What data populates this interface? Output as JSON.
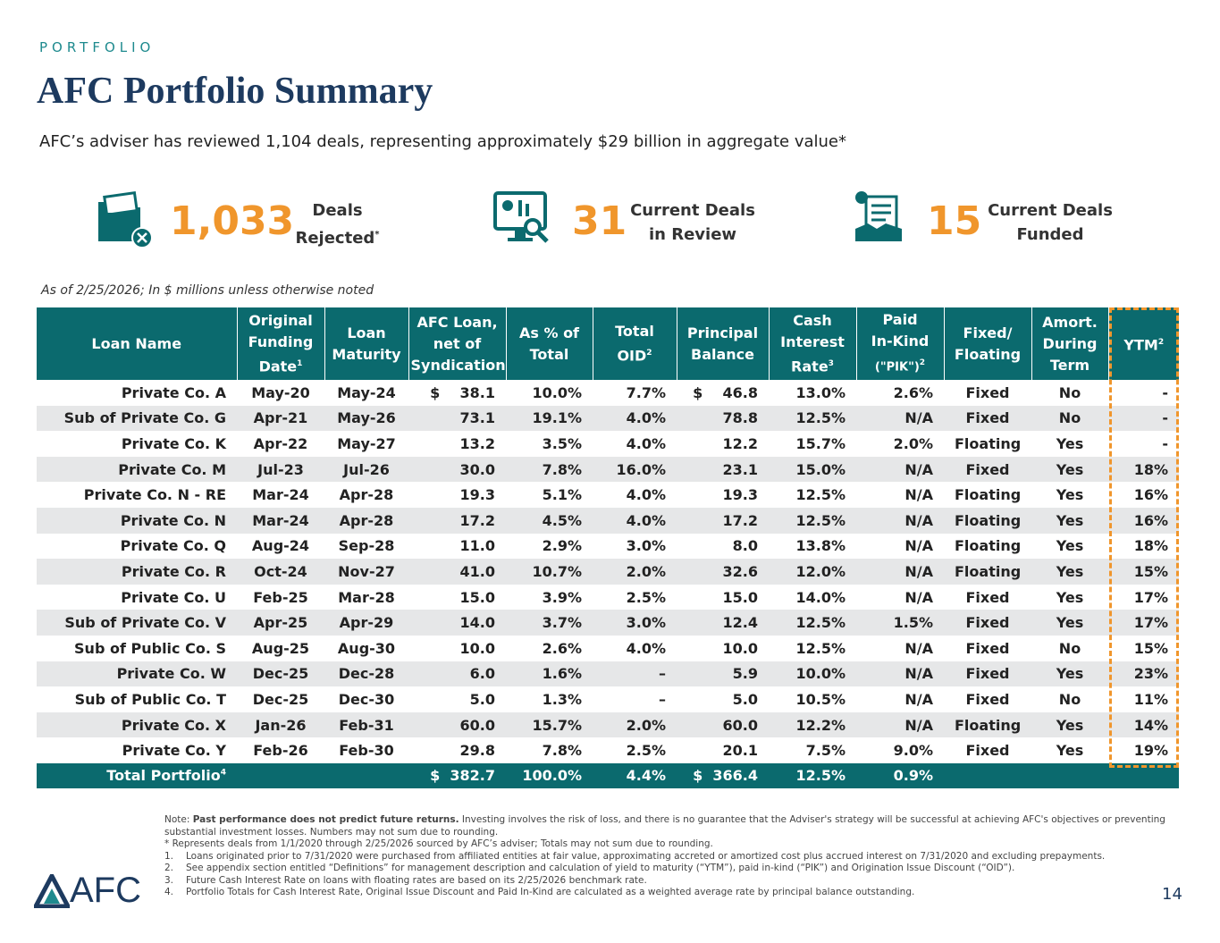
{
  "section_label": "PORTFOLIO",
  "title": "AFC Portfolio Summary",
  "subtitle": "AFC’s adviser has reviewed 1,104 deals, representing approximately $29 billion in aggregate value*",
  "stats": [
    {
      "value": "1,033",
      "lines": [
        "Deals",
        "Rejected"
      ],
      "sup": "*"
    },
    {
      "value": "31",
      "lines": [
        "Current Deals",
        "in Review"
      ]
    },
    {
      "value": "15",
      "lines": [
        "Current Deals",
        "Funded"
      ]
    }
  ],
  "as_of": "As of 2/25/2026; In $ millions unless otherwise noted",
  "table": {
    "headers": [
      {
        "lines": [
          "Loan Name"
        ]
      },
      {
        "lines": [
          "Original",
          "Funding",
          "Date"
        ],
        "sup": "1"
      },
      {
        "lines": [
          "Loan",
          "Maturity"
        ]
      },
      {
        "lines": [
          "AFC Loan,",
          "net of",
          "Syndication"
        ]
      },
      {
        "lines": [
          "As % of",
          "Total"
        ]
      },
      {
        "lines": [
          "Total",
          "OID"
        ],
        "sup": "2"
      },
      {
        "lines": [
          "Principal",
          "Balance"
        ]
      },
      {
        "lines": [
          "Cash",
          "Interest",
          "Rate"
        ],
        "sup": "3"
      },
      {
        "lines": [
          "Paid",
          "In-Kind",
          "(\"PIK\")"
        ],
        "sup": "2"
      },
      {
        "lines": [
          "Fixed/",
          "Floating"
        ]
      },
      {
        "lines": [
          "Amort.",
          "During",
          "Term"
        ]
      },
      {
        "lines": [
          "YTM"
        ],
        "sup": "2"
      }
    ],
    "rows": [
      [
        "Private Co. A",
        "May-20",
        "May-24",
        "$    38.1",
        "10.0%",
        "7.7%",
        "$    46.8",
        "13.0%",
        "2.6%",
        "Fixed",
        "No",
        "-"
      ],
      [
        "Sub of Private Co. G",
        "Apr-21",
        "May-26",
        "73.1",
        "19.1%",
        "4.0%",
        "78.8",
        "12.5%",
        "N/A",
        "Fixed",
        "No",
        "-"
      ],
      [
        "Private Co. K",
        "Apr-22",
        "May-27",
        "13.2",
        "3.5%",
        "4.0%",
        "12.2",
        "15.7%",
        "2.0%",
        "Floating",
        "Yes",
        "-"
      ],
      [
        "Private Co. M",
        "Jul-23",
        "Jul-26",
        "30.0",
        "7.8%",
        "16.0%",
        "23.1",
        "15.0%",
        "N/A",
        "Fixed",
        "Yes",
        "18%"
      ],
      [
        "Private Co. N - RE",
        "Mar-24",
        "Apr-28",
        "19.3",
        "5.1%",
        "4.0%",
        "19.3",
        "12.5%",
        "N/A",
        "Floating",
        "Yes",
        "16%"
      ],
      [
        "Private Co. N",
        "Mar-24",
        "Apr-28",
        "17.2",
        "4.5%",
        "4.0%",
        "17.2",
        "12.5%",
        "N/A",
        "Floating",
        "Yes",
        "16%"
      ],
      [
        "Private Co. Q",
        "Aug-24",
        "Sep-28",
        "11.0",
        "2.9%",
        "3.0%",
        "8.0",
        "13.8%",
        "N/A",
        "Floating",
        "Yes",
        "18%"
      ],
      [
        "Private Co. R",
        "Oct-24",
        "Nov-27",
        "41.0",
        "10.7%",
        "2.0%",
        "32.6",
        "12.0%",
        "N/A",
        "Floating",
        "Yes",
        "15%"
      ],
      [
        "Private Co. U",
        "Feb-25",
        "Mar-28",
        "15.0",
        "3.9%",
        "2.5%",
        "15.0",
        "14.0%",
        "N/A",
        "Fixed",
        "Yes",
        "17%"
      ],
      [
        "Sub of Private Co. V",
        "Apr-25",
        "Apr-29",
        "14.0",
        "3.7%",
        "3.0%",
        "12.4",
        "12.5%",
        "1.5%",
        "Fixed",
        "Yes",
        "17%"
      ],
      [
        "Sub of Public Co. S",
        "Aug-25",
        "Aug-30",
        "10.0",
        "2.6%",
        "4.0%",
        "10.0",
        "12.5%",
        "N/A",
        "Fixed",
        "No",
        "15%"
      ],
      [
        "Private Co. W",
        "Dec-25",
        "Dec-28",
        "6.0",
        "1.6%",
        "–",
        "5.9",
        "10.0%",
        "N/A",
        "Fixed",
        "Yes",
        "23%"
      ],
      [
        "Sub of Public Co. T",
        "Dec-25",
        "Dec-30",
        "5.0",
        "1.3%",
        "–",
        "5.0",
        "10.5%",
        "N/A",
        "Fixed",
        "No",
        "11%"
      ],
      [
        "Private Co. X",
        "Jan-26",
        "Feb-31",
        "60.0",
        "15.7%",
        "2.0%",
        "60.0",
        "12.2%",
        "N/A",
        "Floating",
        "Yes",
        "14%"
      ],
      [
        "Private Co. Y",
        "Feb-26",
        "Feb-30",
        "29.8",
        "7.8%",
        "2.5%",
        "20.1",
        "7.5%",
        "9.0%",
        "Fixed",
        "Yes",
        "19%"
      ]
    ],
    "total": {
      "label": "Total Portfolio",
      "sup": "4",
      "cells": [
        null,
        null,
        "$  382.7",
        "100.0%",
        "4.4%",
        "$  366.4",
        "12.5%",
        "0.9%",
        null,
        null,
        null
      ]
    }
  },
  "notes": {
    "prefix": "Note:",
    "bold": "Past performance does not predict future returns.",
    "text": " Investing involves the risk of loss, and there is no guarantee that the Adviser's strategy will be successful at achieving AFC's objectives or preventing substantial investment losses. Numbers may not sum due to rounding.",
    "star": "* Represents deals from 1/1/2020 through 2/25/2026 sourced by AFC’s adviser; Totals may not sum due to rounding.",
    "items": [
      {
        "num": "1.",
        "text": "Loans originated prior to 7/31/2020 were purchased from affiliated entities at fair value, approximating accreted or amortized cost plus accrued interest on 7/31/2020 and excluding prepayments."
      },
      {
        "num": "2.",
        "text": "See appendix section entitled “Definitions” for management description and calculation of yield to maturity (“YTM”), paid in-kind (“PIK”) and Origination Issue Discount (“OID”)."
      },
      {
        "num": "3.",
        "text": "Future Cash Interest Rate on loans with floating rates are based on its 2/25/2026 benchmark rate."
      },
      {
        "num": "4.",
        "text": "Portfolio Totals for Cash Interest Rate, Original Issue Discount and Paid In-Kind are calculated as a weighted average rate by principal balance outstanding."
      }
    ]
  },
  "logo": "AFC",
  "page_number": "14"
}
